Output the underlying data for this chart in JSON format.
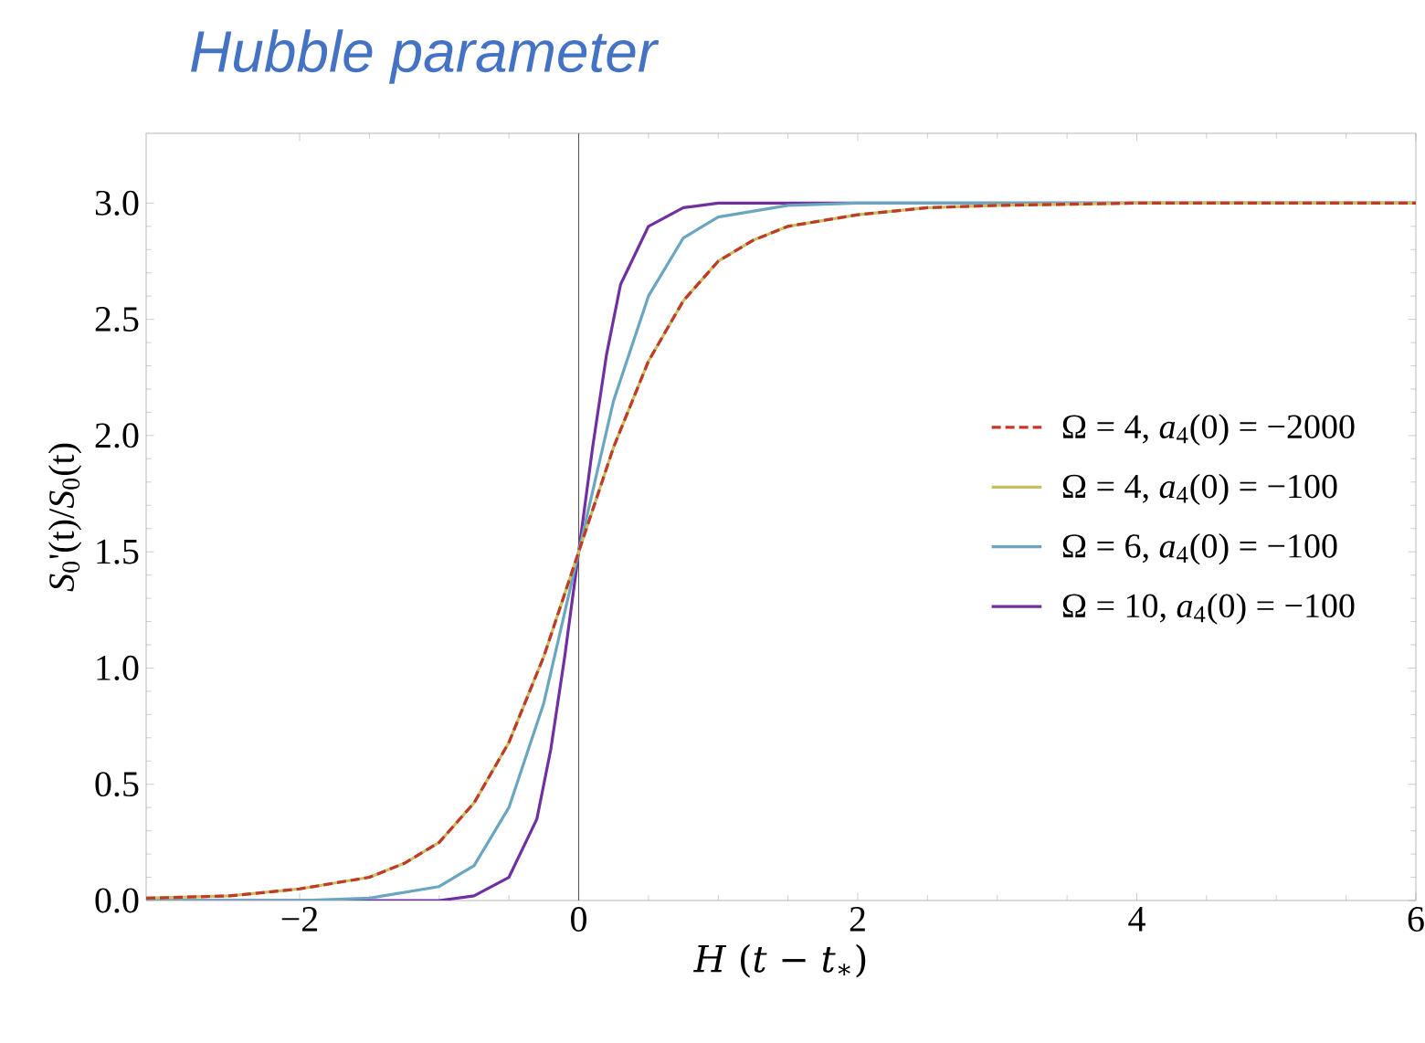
{
  "chart_data": {
    "type": "line",
    "title": "Hubble parameter",
    "xlabel": "*H* (*t* − *t*$_{∗}$)",
    "ylabel": "*S*$_{0}$'(t)/*S*$_{0}$(t)",
    "xlim": [
      -3.1,
      6
    ],
    "ylim": [
      0,
      3.3
    ],
    "xticks": [
      {
        "value": -2,
        "label": "−2"
      },
      0,
      2,
      4,
      6
    ],
    "yticks": [
      {
        "value": 0,
        "label": "0.0"
      },
      {
        "value": 0.5,
        "label": "0.5"
      },
      {
        "value": 1,
        "label": "1.0"
      },
      {
        "value": 1.5,
        "label": "1.5"
      },
      {
        "value": 2,
        "label": "2.0"
      },
      {
        "value": 2.5,
        "label": "2.5"
      },
      {
        "value": 3,
        "label": "3.0"
      }
    ],
    "legend": "right",
    "grid": false,
    "marker": "none",
    "ref_lines": [
      {
        "axis": "x",
        "value": 0,
        "color": "#555555"
      }
    ],
    "series": [
      {
        "name": "Ω = 4, *a*$_{4}$(0) = −2000",
        "color": "#c0392b",
        "line_style": "dashed",
        "x": [
          -3.1,
          -2.5,
          -2,
          -1.5,
          -1.25,
          -1,
          -0.75,
          -0.5,
          -0.25,
          0,
          0.25,
          0.5,
          0.75,
          1,
          1.25,
          1.5,
          2,
          2.5,
          3,
          4,
          6
        ],
        "values": [
          0.01,
          0.02,
          0.05,
          0.1,
          0.16,
          0.25,
          0.42,
          0.68,
          1.05,
          1.5,
          1.95,
          2.32,
          2.58,
          2.75,
          2.84,
          2.9,
          2.95,
          2.98,
          2.99,
          3.0,
          3.0
        ]
      },
      {
        "name": "Ω = 4, *a*$_{4}$(0) = −100",
        "color": "#c8c060",
        "line_style": "solid",
        "x": [
          -3.1,
          -2.5,
          -2,
          -1.5,
          -1.25,
          -1,
          -0.75,
          -0.5,
          -0.25,
          0,
          0.25,
          0.5,
          0.75,
          1,
          1.25,
          1.5,
          2,
          2.5,
          3,
          4,
          6
        ],
        "values": [
          0.01,
          0.02,
          0.05,
          0.1,
          0.16,
          0.25,
          0.42,
          0.68,
          1.05,
          1.5,
          1.95,
          2.32,
          2.58,
          2.75,
          2.84,
          2.9,
          2.95,
          2.98,
          2.99,
          3.0,
          3.0
        ]
      },
      {
        "name": "Ω = 6, *a*$_{4}$(0) = −100",
        "color": "#6aa6c0",
        "line_style": "solid",
        "x": [
          -3.1,
          -2,
          -1.5,
          -1,
          -0.75,
          -0.5,
          -0.25,
          0,
          0.25,
          0.5,
          0.75,
          1,
          1.5,
          2,
          6
        ],
        "values": [
          0.0,
          0.0,
          0.01,
          0.06,
          0.15,
          0.4,
          0.85,
          1.5,
          2.15,
          2.6,
          2.85,
          2.94,
          2.99,
          3.0,
          3.0
        ]
      },
      {
        "name": "Ω = 10, *a*$_{4}$(0) = −100",
        "color": "#7030a0",
        "line_style": "solid",
        "x": [
          -3.1,
          -1,
          -0.75,
          -0.5,
          -0.3,
          -0.2,
          -0.1,
          0,
          0.1,
          0.2,
          0.3,
          0.5,
          0.75,
          1,
          6
        ],
        "values": [
          0.0,
          0.0,
          0.02,
          0.1,
          0.35,
          0.65,
          1.05,
          1.5,
          1.95,
          2.35,
          2.65,
          2.9,
          2.98,
          3.0,
          3.0
        ]
      }
    ]
  }
}
